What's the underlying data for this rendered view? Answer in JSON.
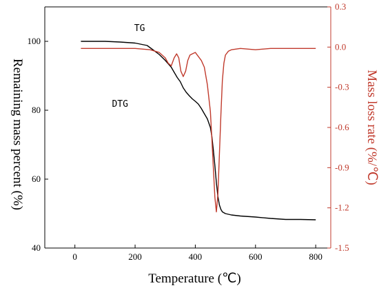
{
  "chart_data": {
    "type": "line",
    "xlabel": "Temperature  (℃)",
    "ylabel": "Remaining mass percent (%)",
    "ylabel_right": "Mass loss rate (%/℃)",
    "xlim": [
      -100,
      850
    ],
    "ylim": [
      40,
      110
    ],
    "ylim_right": [
      -1.5,
      0.3
    ],
    "x_ticks": [
      "0",
      "200",
      "400",
      "600",
      "800"
    ],
    "y_ticks": [
      "40",
      "60",
      "80",
      "100"
    ],
    "y_ticks_right": [
      "-1.5",
      "-1.2",
      "-0.9",
      "-0.6",
      "-0.3",
      "0.0",
      "0.3"
    ],
    "grid": false,
    "annotations": [
      {
        "text": "TG",
        "x": 215,
        "y": 103,
        "axis": "left"
      },
      {
        "text": "DTG",
        "x": 150,
        "y": 81,
        "axis": "left"
      }
    ],
    "series": [
      {
        "name": "TG",
        "axis": "left",
        "color": "#000000",
        "x": [
          20,
          100,
          150,
          200,
          240,
          260,
          280,
          300,
          320,
          330,
          340,
          350,
          360,
          370,
          380,
          390,
          400,
          410,
          420,
          430,
          440,
          450,
          455,
          460,
          465,
          470,
          475,
          480,
          485,
          490,
          500,
          520,
          550,
          600,
          650,
          700,
          750,
          800
        ],
        "y": [
          100,
          100,
          99.8,
          99.5,
          98.8,
          97.5,
          96.2,
          94.5,
          92.5,
          91,
          89.5,
          88.3,
          86.5,
          85.2,
          84.2,
          83.3,
          82.6,
          81.8,
          80.5,
          79,
          77.5,
          75,
          72.5,
          68.5,
          64,
          59,
          55,
          52.5,
          51.2,
          50.5,
          50,
          49.6,
          49.3,
          49,
          48.6,
          48.3,
          48.3,
          48.2
        ]
      },
      {
        "name": "DTG",
        "axis": "right",
        "color": "#c0392b",
        "x": [
          20,
          100,
          150,
          200,
          250,
          280,
          300,
          310,
          320,
          330,
          338,
          345,
          352,
          360,
          368,
          375,
          382,
          390,
          400,
          410,
          420,
          430,
          440,
          450,
          455,
          460,
          465,
          470,
          475,
          480,
          485,
          490,
          495,
          500,
          510,
          520,
          550,
          600,
          650,
          700,
          750,
          800
        ],
        "y": [
          -0.01,
          -0.01,
          -0.01,
          -0.01,
          -0.02,
          -0.04,
          -0.08,
          -0.12,
          -0.14,
          -0.08,
          -0.05,
          -0.08,
          -0.18,
          -0.22,
          -0.18,
          -0.1,
          -0.06,
          -0.05,
          -0.04,
          -0.07,
          -0.1,
          -0.15,
          -0.28,
          -0.48,
          -0.68,
          -0.9,
          -1.12,
          -1.23,
          -1.1,
          -0.8,
          -0.5,
          -0.25,
          -0.12,
          -0.06,
          -0.03,
          -0.02,
          -0.01,
          -0.02,
          -0.01,
          -0.01,
          -0.01,
          -0.01
        ]
      }
    ]
  }
}
